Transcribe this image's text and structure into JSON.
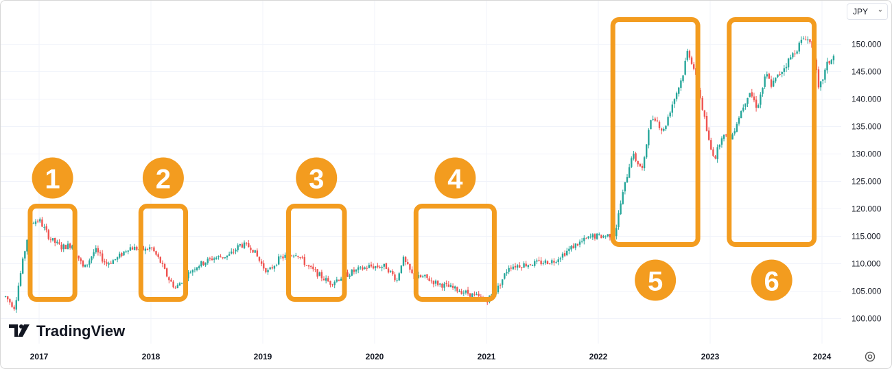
{
  "currency_selector": {
    "value": "JPY",
    "icon": "chevron-down-icon"
  },
  "brand": {
    "name": "TradingView",
    "icon": "tradingview-logo-icon"
  },
  "settings": {
    "icon": "gear-icon"
  },
  "colors": {
    "up": "#26a69a",
    "down": "#ef5350",
    "highlight": "#f39c1f",
    "grid": "#f0f3fa",
    "axis_text": "#131722"
  },
  "chart_data": {
    "type": "candlestick",
    "y_axis": {
      "side": "right",
      "ticks": [
        "150.000",
        "145.000",
        "140.000",
        "135.000",
        "130.000",
        "125.000",
        "120.000",
        "115.000",
        "110.000",
        "105.000",
        "100.000"
      ],
      "range": [
        96,
        155
      ]
    },
    "x_axis": {
      "ticks": [
        "2017",
        "2018",
        "2019",
        "2020",
        "2021",
        "2022",
        "2023",
        "2024"
      ],
      "range": [
        2016.7,
        2024.4
      ]
    },
    "price_path": [
      [
        2016.7,
        104.0
      ],
      [
        2016.78,
        102.0
      ],
      [
        2016.85,
        110.0
      ],
      [
        2016.92,
        117.5
      ],
      [
        2017.0,
        118.0
      ],
      [
        2017.1,
        114.5
      ],
      [
        2017.2,
        113.0
      ],
      [
        2017.3,
        113.5
      ],
      [
        2017.4,
        109.0
      ],
      [
        2017.5,
        112.5
      ],
      [
        2017.6,
        110.0
      ],
      [
        2017.7,
        111.0
      ],
      [
        2017.8,
        113.0
      ],
      [
        2017.95,
        112.5
      ],
      [
        2018.0,
        113.0
      ],
      [
        2018.08,
        110.5
      ],
      [
        2018.15,
        107.5
      ],
      [
        2018.22,
        105.5
      ],
      [
        2018.3,
        107.5
      ],
      [
        2018.4,
        109.5
      ],
      [
        2018.55,
        111.0
      ],
      [
        2018.7,
        111.5
      ],
      [
        2018.8,
        113.5
      ],
      [
        2018.9,
        113.0
      ],
      [
        2019.0,
        109.5
      ],
      [
        2019.05,
        108.5
      ],
      [
        2019.15,
        111.0
      ],
      [
        2019.3,
        112.0
      ],
      [
        2019.4,
        109.5
      ],
      [
        2019.5,
        108.0
      ],
      [
        2019.6,
        106.5
      ],
      [
        2019.7,
        107.5
      ],
      [
        2019.8,
        108.5
      ],
      [
        2019.95,
        109.5
      ],
      [
        2020.1,
        109.5
      ],
      [
        2020.2,
        107.0
      ],
      [
        2020.25,
        111.0
      ],
      [
        2020.35,
        107.5
      ],
      [
        2020.45,
        107.5
      ],
      [
        2020.55,
        106.5
      ],
      [
        2020.7,
        105.5
      ],
      [
        2020.85,
        104.5
      ],
      [
        2021.0,
        103.3
      ],
      [
        2021.1,
        105.5
      ],
      [
        2021.2,
        109.5
      ],
      [
        2021.4,
        110.0
      ],
      [
        2021.6,
        110.5
      ],
      [
        2021.8,
        113.5
      ],
      [
        2021.95,
        115.0
      ],
      [
        2022.05,
        115.0
      ],
      [
        2022.15,
        115.5
      ],
      [
        2022.2,
        121.0
      ],
      [
        2022.3,
        130.0
      ],
      [
        2022.4,
        127.0
      ],
      [
        2022.45,
        135.0
      ],
      [
        2022.5,
        137.0
      ],
      [
        2022.58,
        134.0
      ],
      [
        2022.65,
        138.5
      ],
      [
        2022.75,
        144.0
      ],
      [
        2022.8,
        149.0
      ],
      [
        2022.85,
        146.0
      ],
      [
        2022.92,
        139.5
      ],
      [
        2023.0,
        131.0
      ],
      [
        2023.05,
        129.5
      ],
      [
        2023.1,
        133.5
      ],
      [
        2023.18,
        132.5
      ],
      [
        2023.25,
        136.5
      ],
      [
        2023.35,
        141.5
      ],
      [
        2023.42,
        138.5
      ],
      [
        2023.5,
        144.5
      ],
      [
        2023.55,
        142.5
      ],
      [
        2023.65,
        145.5
      ],
      [
        2023.75,
        148.5
      ],
      [
        2023.85,
        151.5
      ],
      [
        2023.92,
        149.5
      ],
      [
        2023.97,
        141.5
      ],
      [
        2024.05,
        146.5
      ],
      [
        2024.12,
        148.0
      ]
    ],
    "annotations": [
      {
        "label": "1",
        "x_range": [
          2016.92,
          2017.32
        ],
        "y_range": [
          103.5,
          120.5
        ],
        "label_position": "above"
      },
      {
        "label": "2",
        "x_range": [
          2017.91,
          2018.31
        ],
        "y_range": [
          103.5,
          120.5
        ],
        "label_position": "above"
      },
      {
        "label": "3",
        "x_range": [
          2019.23,
          2019.73
        ],
        "y_range": [
          103.5,
          120.5
        ],
        "label_position": "above"
      },
      {
        "label": "4",
        "x_range": [
          2020.37,
          2021.07
        ],
        "y_range": [
          103.5,
          120.5
        ],
        "label_position": "above"
      },
      {
        "label": "5",
        "x_range": [
          2022.13,
          2022.89
        ],
        "y_range": [
          113.5,
          154.5
        ],
        "label_position": "below"
      },
      {
        "label": "6",
        "x_range": [
          2023.17,
          2023.93
        ],
        "y_range": [
          113.5,
          154.5
        ],
        "label_position": "below"
      }
    ]
  }
}
